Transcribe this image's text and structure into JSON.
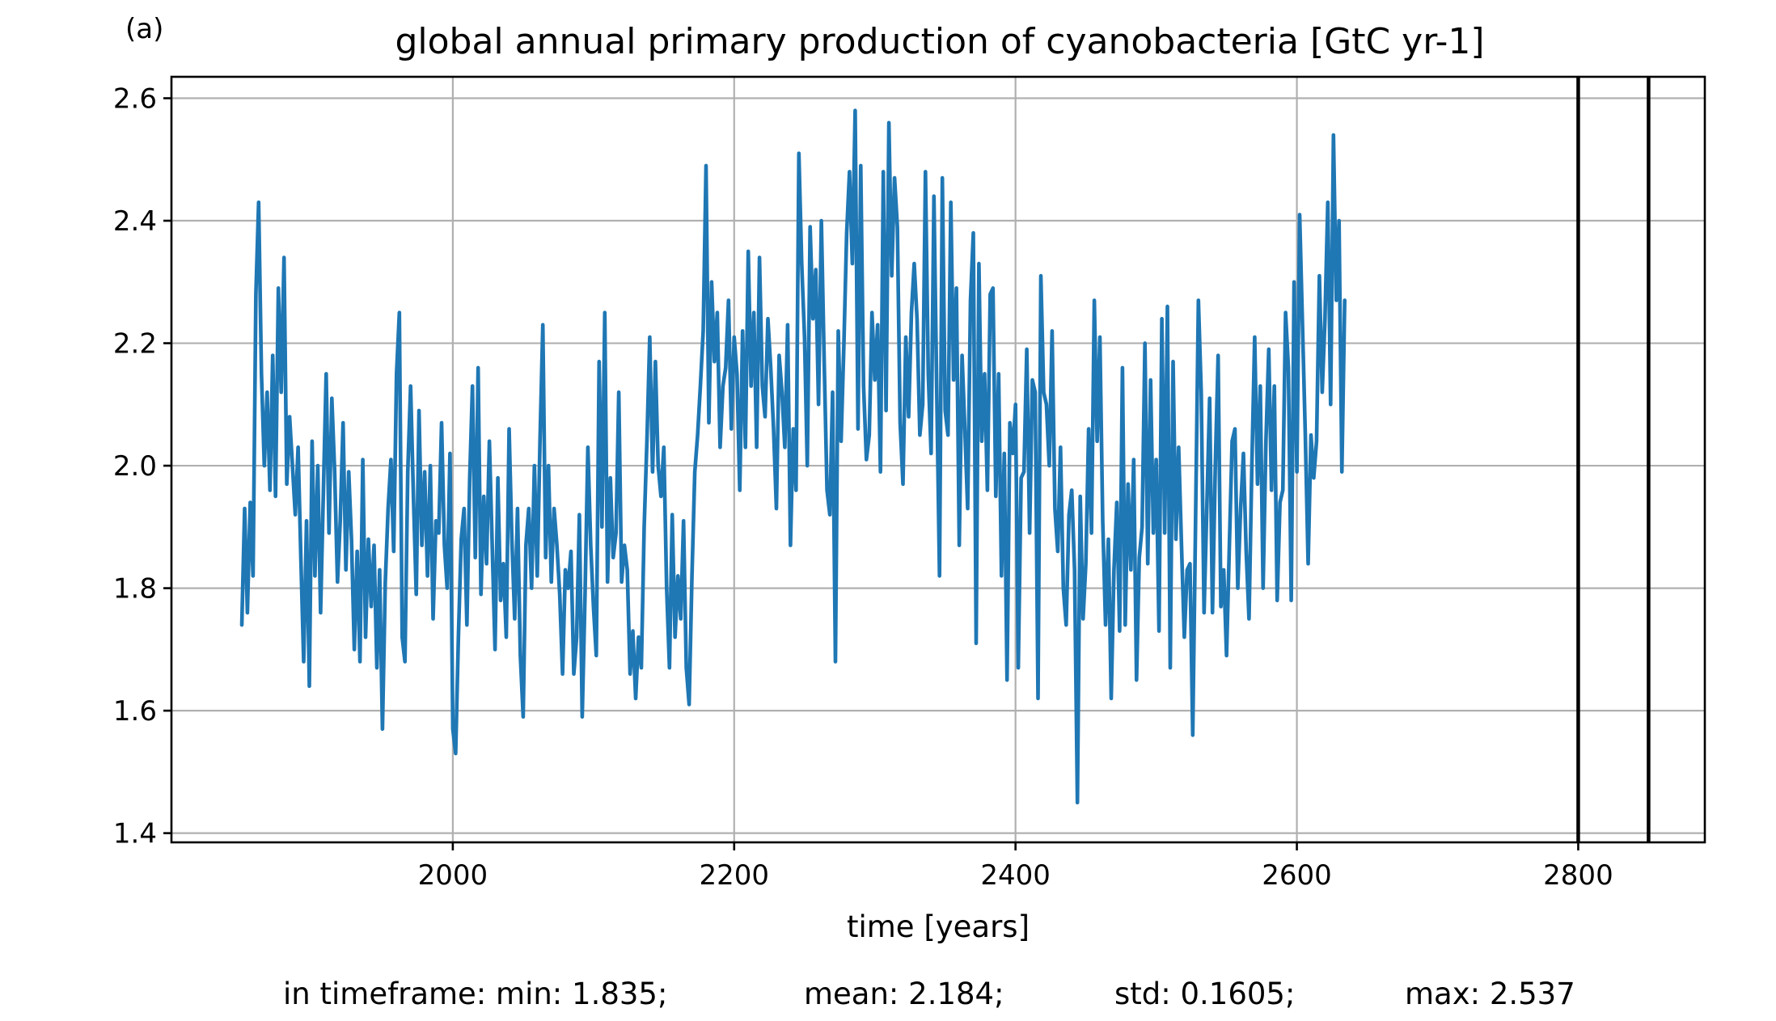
{
  "chart_data": {
    "type": "line",
    "panel_label": "(a)",
    "title": "global annual primary production of cyanobacteria [GtC yr-1]",
    "xlabel": "time [years]",
    "ylabel": "",
    "xlim": [
      1800,
      2890
    ],
    "ylim": [
      1.385,
      2.635
    ],
    "x_ticks": [
      2000,
      2200,
      2400,
      2600,
      2800
    ],
    "x_tick_labels": [
      "2000",
      "2200",
      "2400",
      "2600",
      "2800"
    ],
    "y_ticks": [
      1.4,
      1.6,
      1.8,
      2.0,
      2.2,
      2.4,
      2.6
    ],
    "y_tick_labels": [
      "1.4",
      "1.6",
      "1.8",
      "2.0",
      "2.2",
      "2.4",
      "2.6"
    ],
    "grid": true,
    "series_color": "#1f77b4",
    "vertical_lines": [
      2800,
      2850
    ],
    "stats_footer": {
      "min": "in timeframe: min: 1.835;",
      "mean": "mean: 2.184;",
      "std": "std: 0.1605;",
      "max": "max: 2.537"
    },
    "series": [
      {
        "x_start": 1850,
        "x_step": 2,
        "y": [
          1.74,
          1.93,
          1.76,
          1.94,
          1.82,
          2.28,
          2.43,
          2.15,
          2.0,
          2.12,
          1.96,
          2.18,
          1.95,
          2.29,
          2.12,
          2.34,
          1.97,
          2.08,
          2.0,
          1.92,
          2.03,
          1.85,
          1.68,
          1.91,
          1.64,
          2.04,
          1.82,
          2.0,
          1.76,
          1.96,
          2.15,
          1.89,
          2.11,
          1.99,
          1.81,
          1.91,
          2.07,
          1.83,
          1.99,
          1.88,
          1.7,
          1.86,
          1.68,
          2.01,
          1.72,
          1.88,
          1.77,
          1.87,
          1.67,
          1.83,
          1.57,
          1.81,
          1.93,
          2.01,
          1.86,
          2.15,
          2.25,
          1.72,
          1.68,
          1.99,
          2.13,
          1.95,
          1.79,
          2.09,
          1.87,
          1.99,
          1.82,
          2.0,
          1.75,
          1.91,
          1.89,
          2.07,
          1.87,
          1.8,
          2.02,
          1.57,
          1.53,
          1.72,
          1.88,
          1.93,
          1.74,
          1.98,
          2.13,
          1.85,
          2.16,
          1.79,
          1.95,
          1.84,
          2.04,
          1.87,
          1.7,
          1.98,
          1.78,
          1.84,
          1.72,
          2.06,
          1.88,
          1.75,
          1.93,
          1.69,
          1.59,
          1.87,
          1.93,
          1.8,
          2.0,
          1.82,
          2.04,
          2.23,
          1.85,
          2.0,
          1.81,
          1.93,
          1.87,
          1.79,
          1.66,
          1.83,
          1.8,
          1.86,
          1.66,
          1.72,
          1.92,
          1.59,
          1.79,
          2.03,
          1.87,
          1.77,
          1.69,
          2.17,
          1.9,
          2.25,
          1.81,
          1.98,
          1.85,
          1.89,
          2.12,
          1.81,
          1.87,
          1.83,
          1.66,
          1.73,
          1.62,
          1.72,
          1.67,
          1.9,
          2.04,
          2.21,
          1.99,
          2.17,
          2.0,
          1.95,
          2.03,
          1.8,
          1.67,
          1.92,
          1.72,
          1.82,
          1.75,
          1.91,
          1.67,
          1.61,
          1.82,
          1.99,
          2.05,
          2.13,
          2.22,
          2.49,
          2.07,
          2.3,
          2.17,
          2.25,
          2.03,
          2.13,
          2.16,
          2.27,
          2.06,
          2.21,
          2.15,
          1.96,
          2.22,
          2.03,
          2.35,
          2.13,
          2.25,
          2.03,
          2.34,
          2.13,
          2.08,
          2.24,
          2.16,
          2.06,
          1.93,
          2.18,
          2.12,
          2.03,
          2.23,
          1.87,
          2.06,
          1.96,
          2.51,
          2.33,
          2.21,
          2.0,
          2.39,
          2.24,
          2.32,
          2.1,
          2.4,
          2.17,
          1.96,
          1.92,
          2.12,
          1.68,
          2.22,
          2.04,
          2.2,
          2.38,
          2.48,
          2.33,
          2.58,
          2.06,
          2.49,
          2.13,
          2.01,
          2.05,
          2.25,
          2.14,
          2.23,
          1.99,
          2.48,
          2.09,
          2.56,
          2.31,
          2.47,
          2.39,
          2.07,
          1.97,
          2.21,
          2.08,
          2.25,
          2.33,
          2.24,
          2.05,
          2.1,
          2.48,
          2.15,
          2.02,
          2.44,
          2.12,
          1.82,
          2.47,
          2.09,
          2.05,
          2.43,
          2.14,
          2.29,
          1.87,
          2.18,
          2.06,
          1.93,
          2.27,
          2.38,
          1.71,
          2.33,
          2.04,
          2.15,
          1.96,
          2.28,
          2.29,
          1.95,
          2.15,
          1.82,
          2.02,
          1.65,
          2.07,
          2.02,
          2.1,
          1.67,
          1.98,
          1.99,
          2.19,
          1.89,
          2.14,
          2.12,
          1.62,
          2.31,
          2.12,
          2.1,
          2.0,
          2.22,
          1.93,
          1.86,
          2.03,
          1.8,
          1.74,
          1.92,
          1.96,
          1.83,
          1.45,
          1.95,
          1.75,
          1.84,
          2.06,
          1.89,
          2.27,
          2.04,
          2.21,
          1.91,
          1.74,
          1.88,
          1.62,
          1.83,
          1.94,
          1.73,
          2.16,
          1.74,
          1.97,
          1.83,
          2.01,
          1.65,
          1.85,
          1.9,
          2.2,
          1.84,
          2.14,
          1.89,
          2.01,
          1.73,
          2.24,
          1.89,
          2.26,
          1.67,
          2.17,
          1.88,
          2.03,
          1.87,
          1.72,
          1.83,
          1.84,
          1.56,
          1.91,
          2.27,
          2.12,
          1.76,
          1.93,
          2.11,
          1.76,
          2.0,
          2.18,
          1.77,
          1.83,
          1.69,
          1.87,
          2.04,
          2.06,
          1.8,
          1.93,
          2.02,
          1.86,
          1.75,
          2.0,
          2.21,
          1.97,
          2.13,
          1.8,
          2.04,
          2.19,
          1.96,
          2.13,
          1.78,
          1.94,
          1.96,
          2.25,
          2.16,
          1.78,
          2.3,
          1.99,
          2.41,
          2.23,
          2.05,
          1.84,
          2.05,
          1.98,
          2.04,
          2.31,
          2.12,
          2.24,
          2.43,
          2.1,
          2.54,
          2.27,
          2.4,
          1.99,
          2.27
        ]
      }
    ]
  }
}
